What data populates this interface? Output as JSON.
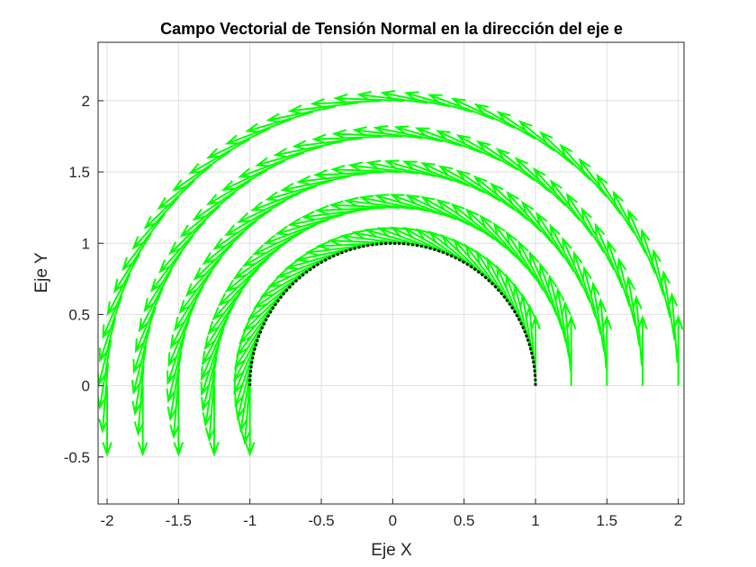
{
  "chart_data": {
    "type": "quiver",
    "title": "Campo Vectorial de Tensión Normal en la dirección del eje e",
    "xlabel": "Eje X",
    "ylabel": "Eje Y",
    "xlim": [
      -2.063,
      2.04
    ],
    "ylim": [
      -0.83,
      2.41
    ],
    "grid": true,
    "xticks": [
      -2,
      -1.5,
      -1,
      -0.5,
      0,
      0.5,
      1,
      1.5,
      2
    ],
    "xtick_labels": [
      "-2",
      "-1.5",
      "-1",
      "-0.5",
      "0",
      "0.5",
      "1",
      "1.5",
      "2"
    ],
    "yticks": [
      -0.5,
      0,
      0.5,
      1,
      1.5,
      2
    ],
    "ytick_labels": [
      "-0.5",
      "0",
      "0.5",
      "1",
      "1.5",
      "2"
    ],
    "radii": [
      1,
      1.25,
      1.5,
      1.75,
      2
    ],
    "theta_range_deg": [
      0,
      180
    ],
    "arrows_per_arc": 40,
    "arrow_length": 0.48,
    "arrow_direction": "tangential counter-clockwise",
    "arrow_color": "#00ff00",
    "boundary": {
      "radius": 1,
      "style": "dotted",
      "color": "#000000"
    }
  }
}
